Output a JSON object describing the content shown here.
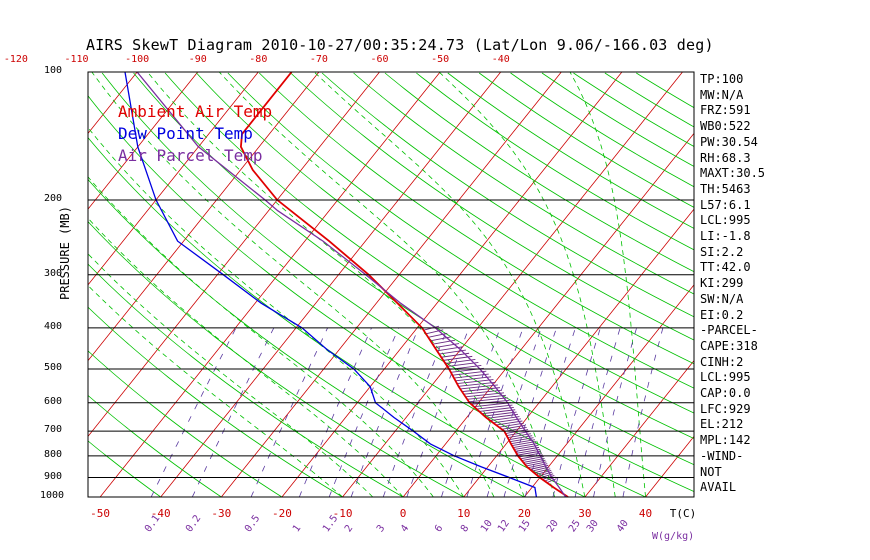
{
  "title": "AIRS SkewT Diagram 2010-10-27/00:35:24.73 (Lat/Lon 9.06/-166.03 deg)",
  "legend": [
    {
      "label": "Ambient Air Temp",
      "color": "#e00000"
    },
    {
      "label": "Dew Point Temp",
      "color": "#0000e0"
    },
    {
      "label": "Air Parcel Temp",
      "color": "#7a2ea0"
    }
  ],
  "axis": {
    "ylabel": "PRESSURE (MB)",
    "t_unit": "T(C)",
    "w_unit": "W(g/kg)",
    "pressure_ticks": [
      "100",
      "200",
      "300",
      "400",
      "500",
      "600",
      "700",
      "800",
      "900",
      "1000"
    ],
    "top_temp_ticks": [
      "-120",
      "-110",
      "-100",
      "-90",
      "-80",
      "-70",
      "-60",
      "-50",
      "-40"
    ],
    "bottom_temp_ticks": [
      "-50",
      "-40",
      "-30",
      "-20",
      "-10",
      "0",
      "10",
      "20",
      "30",
      "40"
    ],
    "mixing_ratio_ticks": [
      "0.1",
      "0.2",
      "0.5",
      "1",
      "1.5",
      "2",
      "3",
      "4",
      "6",
      "8",
      "10",
      "12",
      "15",
      "20",
      "25",
      "30",
      "40"
    ]
  },
  "side_panel": [
    "TP:100",
    "MW:N/A",
    "FRZ:591",
    "WB0:522",
    "PW:30.54",
    "RH:68.3",
    "MAXT:30.5",
    "TH:5463",
    "L57:6.1",
    "LCL:995",
    "LI:-1.8",
    "SI:2.2",
    "TT:42.0",
    "KI:299",
    "SW:N/A",
    "EI:0.2",
    "-PARCEL-",
    "CAPE:318",
    "CINH:2",
    "LCL:995",
    "CAP:0.0",
    "LFC:929",
    "EL:212",
    "MPL:142",
    "-WIND-",
    "NOT",
    "AVAIL"
  ],
  "colors": {
    "isotherm": "#cc0000",
    "dry_adiabat": "#00c000",
    "moist_adiabat": "#00c000",
    "mixing_ratio": "#5a3aa0",
    "isobar": "#000000"
  },
  "chart_data": {
    "type": "line",
    "title": "AIRS SkewT Diagram 2010-10-27/00:35:24.73 (Lat/Lon 9.06/-166.03 deg)",
    "ylabel": "PRESSURE (MB)",
    "xlabel": "T(C)",
    "ylim": [
      1000,
      100
    ],
    "xlim_surface": [
      -52,
      48
    ],
    "series": [
      {
        "name": "Ambient Air Temp",
        "points": [
          [
            1000,
            27.2
          ],
          [
            950,
            23.6
          ],
          [
            900,
            20.0
          ],
          [
            850,
            16.5
          ],
          [
            800,
            13.5
          ],
          [
            750,
            10.8
          ],
          [
            700,
            8.0
          ],
          [
            650,
            3.2
          ],
          [
            600,
            -1.5
          ],
          [
            550,
            -5.4
          ],
          [
            500,
            -9.3
          ],
          [
            450,
            -14.0
          ],
          [
            400,
            -19.2
          ],
          [
            350,
            -26.5
          ],
          [
            300,
            -35.0
          ],
          [
            250,
            -46.0
          ],
          [
            200,
            -60.0
          ],
          [
            170,
            -68.0
          ],
          [
            150,
            -73.0
          ],
          [
            140,
            -74.5
          ],
          [
            100,
            -74.5
          ]
        ]
      },
      {
        "name": "Dew Point Temp",
        "points": [
          [
            1000,
            22.0
          ],
          [
            950,
            20.5
          ],
          [
            900,
            15.0
          ],
          [
            850,
            9.0
          ],
          [
            800,
            3.0
          ],
          [
            750,
            -2.5
          ],
          [
            700,
            -7.0
          ],
          [
            650,
            -12.0
          ],
          [
            600,
            -17.0
          ],
          [
            550,
            -20.0
          ],
          [
            500,
            -25.0
          ],
          [
            450,
            -32.0
          ],
          [
            400,
            -39.0
          ],
          [
            350,
            -49.0
          ],
          [
            300,
            -59.0
          ],
          [
            250,
            -71.0
          ],
          [
            200,
            -80.0
          ],
          [
            150,
            -90.0
          ],
          [
            100,
            -102.0
          ]
        ]
      },
      {
        "name": "Air Parcel Temp",
        "points": [
          [
            1000,
            27.0
          ],
          [
            995,
            26.6
          ],
          [
            950,
            24.5
          ],
          [
            900,
            22.0
          ],
          [
            850,
            19.6
          ],
          [
            800,
            17.2
          ],
          [
            750,
            14.6
          ],
          [
            700,
            11.5
          ],
          [
            650,
            8.2
          ],
          [
            600,
            4.8
          ],
          [
            550,
            0.6
          ],
          [
            500,
            -4.2
          ],
          [
            450,
            -10.0
          ],
          [
            400,
            -17.0
          ],
          [
            350,
            -26.0
          ],
          [
            300,
            -35.5
          ],
          [
            250,
            -47.0
          ],
          [
            212,
            -58.5
          ],
          [
            200,
            -62.0
          ],
          [
            150,
            -80.0
          ],
          [
            100,
            -100.0
          ]
        ]
      }
    ]
  }
}
